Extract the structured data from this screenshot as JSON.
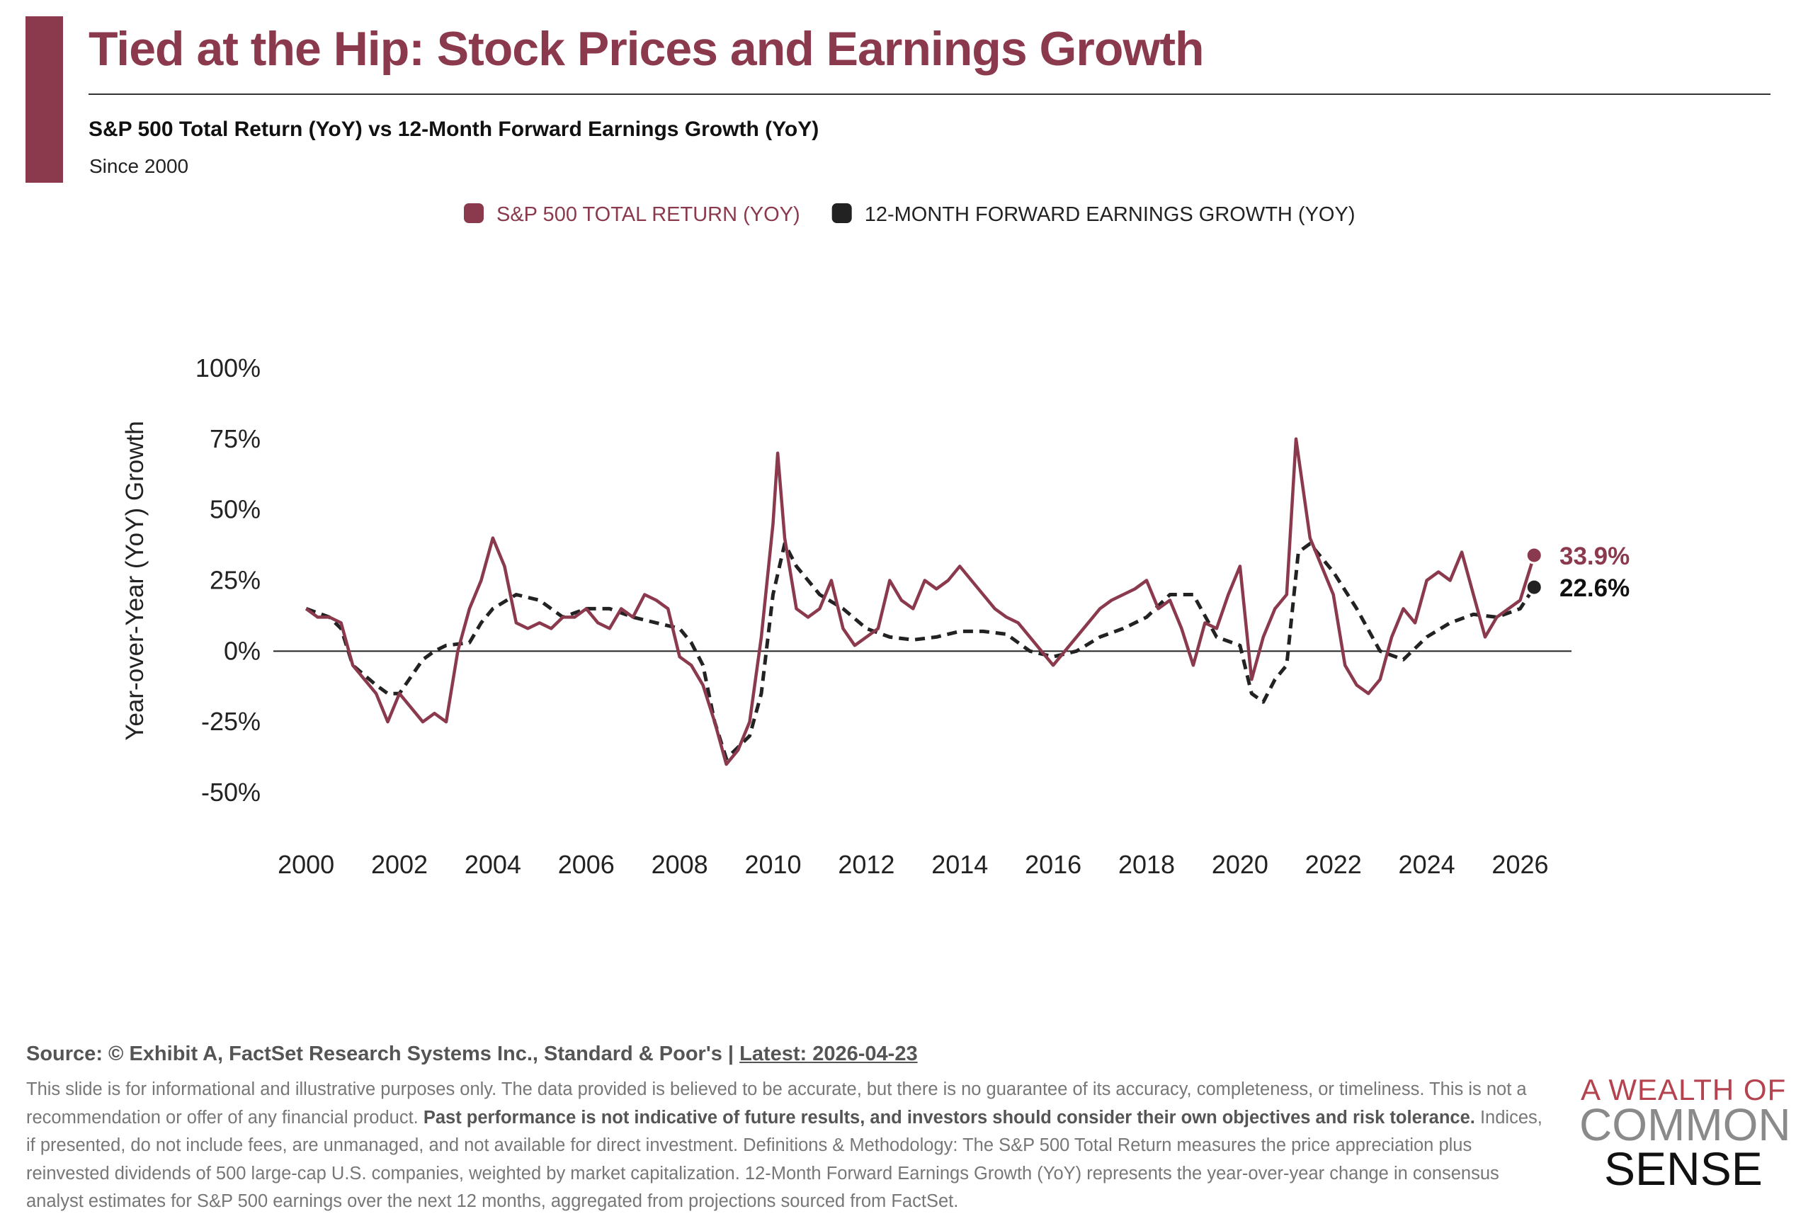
{
  "header": {
    "title": "Tied at the Hip: Stock Prices and Earnings Growth",
    "subtitle": "S&P 500 Total Return (YoY) vs 12-Month Forward Earnings Growth (YoY)",
    "note": "Since 2000"
  },
  "chart_data": {
    "type": "line",
    "y_label": "Year-over-Year (YoY) Growth",
    "xlim": [
      1999.3,
      2027.1
    ],
    "xticks": [
      2000,
      2002,
      2004,
      2006,
      2008,
      2010,
      2012,
      2014,
      2016,
      2018,
      2020,
      2022,
      2024,
      2026
    ],
    "ylim": [
      -50,
      100
    ],
    "yticks": [
      {
        "value": -50,
        "label": "-50%"
      },
      {
        "value": -25,
        "label": "-25%"
      },
      {
        "value": 0,
        "label": "0%"
      },
      {
        "value": 25,
        "label": "25%"
      },
      {
        "value": 50,
        "label": "50%"
      },
      {
        "value": 75,
        "label": "75%"
      },
      {
        "value": 100,
        "label": "100%"
      }
    ],
    "zero_line": true,
    "series": [
      {
        "name": "S&P 500 TOTAL RETURN (YOY)",
        "color": "#8b3a4e",
        "dash": false,
        "last_label": "33.9%",
        "x": [
          2000,
          2000.25,
          2000.5,
          2000.75,
          2001,
          2001.25,
          2001.5,
          2001.75,
          2002,
          2002.25,
          2002.5,
          2002.75,
          2003,
          2003.25,
          2003.5,
          2003.75,
          2004,
          2004.25,
          2004.5,
          2004.75,
          2005,
          2005.25,
          2005.5,
          2005.75,
          2006,
          2006.25,
          2006.5,
          2006.75,
          2007,
          2007.25,
          2007.5,
          2007.75,
          2008,
          2008.25,
          2008.5,
          2008.75,
          2009,
          2009.25,
          2009.5,
          2009.75,
          2010,
          2010.1,
          2010.25,
          2010.5,
          2010.75,
          2011,
          2011.25,
          2011.5,
          2011.75,
          2012,
          2012.25,
          2012.5,
          2012.75,
          2013,
          2013.25,
          2013.5,
          2013.75,
          2014,
          2014.25,
          2014.5,
          2014.75,
          2015,
          2015.25,
          2015.5,
          2015.75,
          2016,
          2016.25,
          2016.5,
          2016.75,
          2017,
          2017.25,
          2017.5,
          2017.75,
          2018,
          2018.25,
          2018.5,
          2018.75,
          2019,
          2019.25,
          2019.5,
          2019.75,
          2020,
          2020.25,
          2020.5,
          2020.75,
          2021,
          2021.2,
          2021.5,
          2021.75,
          2022,
          2022.25,
          2022.5,
          2022.75,
          2023,
          2023.25,
          2023.5,
          2023.75,
          2024,
          2024.25,
          2024.5,
          2024.75,
          2025,
          2025.25,
          2025.5,
          2025.75,
          2026,
          2026.3
        ],
        "values": [
          15,
          12,
          12,
          10,
          -5,
          -10,
          -15,
          -25,
          -15,
          -20,
          -25,
          -22,
          -25,
          0,
          15,
          25,
          40,
          30,
          10,
          8,
          10,
          8,
          12,
          12,
          15,
          10,
          8,
          15,
          12,
          20,
          18,
          15,
          -2,
          -5,
          -12,
          -25,
          -40,
          -35,
          -25,
          5,
          45,
          70,
          40,
          15,
          12,
          15,
          25,
          8,
          2,
          5,
          8,
          25,
          18,
          15,
          25,
          22,
          25,
          30,
          25,
          20,
          15,
          12,
          10,
          5,
          0,
          -5,
          0,
          5,
          10,
          15,
          18,
          20,
          22,
          25,
          15,
          18,
          8,
          -5,
          10,
          8,
          20,
          30,
          -10,
          5,
          15,
          20,
          75,
          40,
          30,
          20,
          -5,
          -12,
          -15,
          -10,
          5,
          15,
          10,
          25,
          28,
          25,
          35,
          20,
          5,
          12,
          15,
          18,
          33.9
        ]
      },
      {
        "name": "12-MONTH FORWARD EARNINGS GROWTH (YOY)",
        "color": "#222222",
        "dash": true,
        "last_label": "22.6%",
        "x": [
          2000,
          2000.5,
          2000.75,
          2001,
          2001.5,
          2001.75,
          2002,
          2002.5,
          2002.75,
          2003,
          2003.5,
          2003.75,
          2004,
          2004.5,
          2005,
          2005.5,
          2006,
          2006.5,
          2007,
          2007.5,
          2008,
          2008.25,
          2008.5,
          2008.75,
          2009,
          2009.5,
          2009.75,
          2010,
          2010.25,
          2010.5,
          2010.75,
          2011,
          2011.5,
          2012,
          2012.5,
          2013,
          2013.5,
          2014,
          2014.5,
          2015,
          2015.5,
          2016,
          2016.5,
          2017,
          2017.5,
          2018,
          2018.5,
          2019,
          2019.5,
          2020,
          2020.25,
          2020.5,
          2020.75,
          2021,
          2021.25,
          2021.5,
          2022,
          2022.5,
          2023,
          2023.5,
          2024,
          2024.5,
          2025,
          2025.5,
          2026,
          2026.3
        ],
        "values": [
          15,
          12,
          8,
          -5,
          -12,
          -15,
          -15,
          -3,
          0,
          2,
          3,
          10,
          15,
          20,
          18,
          12,
          15,
          15,
          12,
          10,
          8,
          3,
          -5,
          -25,
          -38,
          -30,
          -15,
          20,
          38,
          30,
          25,
          20,
          15,
          8,
          5,
          4,
          5,
          7,
          7,
          6,
          0,
          -2,
          0,
          5,
          8,
          12,
          20,
          20,
          5,
          2,
          -15,
          -18,
          -10,
          -5,
          35,
          38,
          28,
          15,
          0,
          -3,
          5,
          10,
          13,
          12,
          15,
          22.6
        ]
      }
    ]
  },
  "footer": {
    "source": "Source: © Exhibit A, FactSet Research Systems Inc., Standard & Poor's | ",
    "latest": "Latest: 2026-04-23",
    "disclaimer_1": "This slide is for informational and illustrative purposes only. The data provided is believed to be accurate, but there is no guarantee of its accuracy, completeness, or timeliness. This is not a recommendation or offer of any financial product. ",
    "disclaimer_bold": "Past performance is not indicative of future results, and investors should consider their own objectives and risk tolerance.",
    "disclaimer_2": " Indices, if presented, do not include fees, are unmanaged, and not available for direct investment. Definitions & Methodology: The S&P 500 Total Return measures the price appreciation plus reinvested dividends of 500 large-cap U.S. companies, weighted by market capitalization. 12-Month Forward Earnings Growth (YoY) represents the year-over-year change in consensus analyst estimates for S&P 500 earnings over the next 12 months, aggregated from projections sourced from FactSet."
  },
  "logo": {
    "line1": "A WEALTH OF",
    "line2": "COMMON",
    "line3": "SENSE"
  }
}
